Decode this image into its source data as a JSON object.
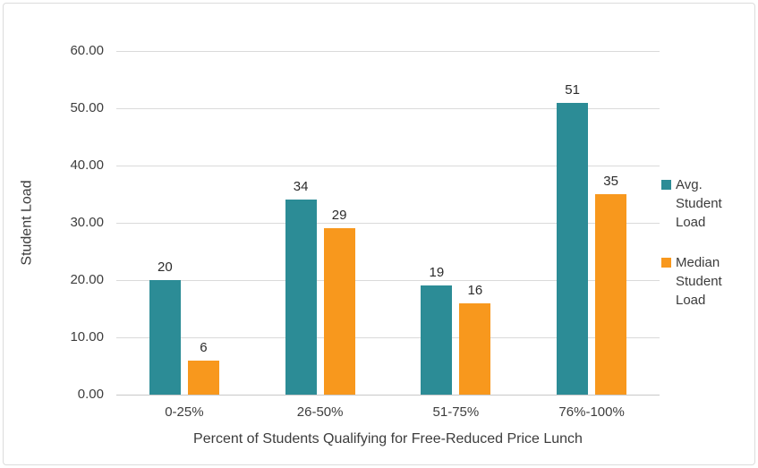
{
  "chart_data": {
    "type": "bar",
    "title": "",
    "xlabel": "Percent of Students Qualifying for Free-Reduced Price Lunch",
    "ylabel": "Student Load",
    "categories": [
      "0-25%",
      "26-50%",
      "51-75%",
      "76%-100%"
    ],
    "series": [
      {
        "name": "Avg. Student Load",
        "color": "#2c8c96",
        "values": [
          20,
          34,
          19,
          51
        ]
      },
      {
        "name": "Median Student Load",
        "color": "#f8981d",
        "values": [
          6,
          29,
          16,
          35
        ]
      }
    ],
    "ylim": [
      0,
      60
    ],
    "y_ticks": [
      "0.00",
      "10.00",
      "20.00",
      "30.00",
      "40.00",
      "50.00",
      "60.00"
    ],
    "grid": "horizontal-only",
    "legend_position": "right",
    "data_labels": true
  },
  "colors": {
    "background": "#ffffff",
    "frame_border": "#dcdcdc",
    "gridline": "#dadada",
    "axis_baseline": "#c8c8c8",
    "text": "#3d3d3d",
    "data_label_text": "#2b2b2b",
    "series_avg": "#2c8c96",
    "series_median": "#f8981d"
  }
}
